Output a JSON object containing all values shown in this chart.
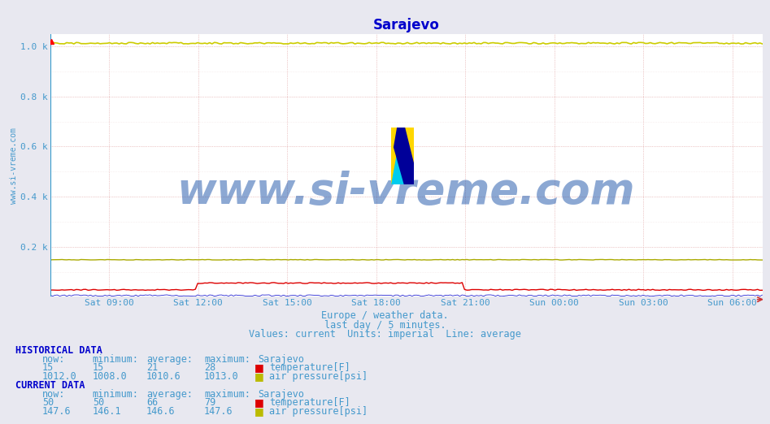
{
  "title": "Sarajevo",
  "title_color": "#0000cc",
  "title_fontsize": 12,
  "bg_color": "#e8e8f0",
  "plot_bg_color": "#ffffff",
  "xlabel_lines": [
    "Europe / weather data.",
    "last day / 5 minutes.",
    "Values: current  Units: imperial  Line: average"
  ],
  "text_color": "#4499cc",
  "ylabel_text": "www.si-vreme.com",
  "ylabel_color": "#4499cc",
  "ylabel_fontsize": 7,
  "x_tick_labels": [
    "Sat 09:00",
    "Sat 12:00",
    "Sat 15:00",
    "Sat 18:00",
    "Sat 21:00",
    "Sun 00:00",
    "Sun 03:00",
    "Sun 06:00"
  ],
  "x_tick_positions": [
    0.083,
    0.208,
    0.333,
    0.458,
    0.583,
    0.708,
    0.833,
    0.958
  ],
  "ytick_labels": [
    "0.2 k",
    "0.4 k",
    "0.6 k",
    "0.8 k",
    "1.0 k"
  ],
  "ytick_values": [
    200,
    400,
    600,
    800,
    1000
  ],
  "ylim": [
    0,
    1050
  ],
  "xlim": [
    0,
    1
  ],
  "grid_color": "#dd9999",
  "grid_minor_color": "#eedddd",
  "watermark_text": "www.si-vreme.com",
  "watermark_color": "#1a52a8",
  "watermark_fontsize": 38,
  "watermark_alpha": 0.5,
  "logo_yellow": "#FFD700",
  "logo_cyan": "#00CCEE",
  "logo_blue": "#000099",
  "hist_label": "HISTORICAL DATA",
  "curr_label": "CURRENT DATA",
  "header": [
    "now:",
    "minimum:",
    "average:",
    "maximum:",
    "Sarajevo"
  ],
  "hist_temp": [
    "15",
    "15",
    "21",
    "28"
  ],
  "hist_pressure": [
    "1012.0",
    "1008.0",
    "1010.6",
    "1013.0"
  ],
  "curr_temp": [
    "50",
    "50",
    "66",
    "79"
  ],
  "curr_pressure": [
    "147.6",
    "146.1",
    "146.6",
    "147.6"
  ],
  "temp_label": "temperature[F]",
  "pressure_label": "air pressure[psi]",
  "table_color": "#4499cc",
  "label_color": "#0000cc",
  "table_fontsize": 8.5
}
